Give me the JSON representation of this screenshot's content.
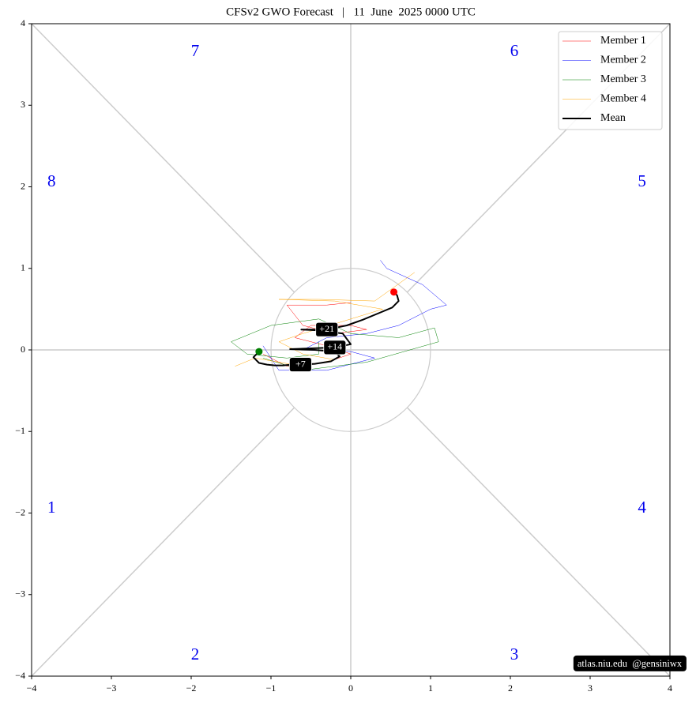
{
  "chart_data": {
    "type": "phase-line",
    "title": "CFSv2 GWO Forecast   |   11  June  2025 0000 UTC",
    "xlim": [
      -4,
      4
    ],
    "ylim": [
      -4,
      4
    ],
    "xticks": [
      {
        "value": -4,
        "label": "−4"
      },
      {
        "value": -3,
        "label": "−3"
      },
      {
        "value": -2,
        "label": "−2"
      },
      {
        "value": -1,
        "label": "−1"
      },
      0,
      1,
      2,
      3,
      4
    ],
    "yticks": [
      {
        "value": -4,
        "label": "−4"
      },
      {
        "value": -3,
        "label": "−3"
      },
      {
        "value": -2,
        "label": "−2"
      },
      {
        "value": -1,
        "label": "−1"
      },
      0,
      1,
      2,
      3,
      4
    ],
    "phase_labels": [
      "1",
      "2",
      "3",
      "4",
      "5",
      "6",
      "7",
      "8"
    ],
    "legend_position": "upper right",
    "start_color": "green",
    "end_color": "red",
    "series": [
      {
        "name": "Member 1",
        "color": "#ff0000",
        "width": 0.5,
        "x": [
          -1.1,
          -0.8,
          -0.3,
          0,
          -0.3,
          -0.7,
          -0.5,
          0,
          0.2,
          -0.2,
          -0.6,
          -0.8,
          -0.3,
          0
        ],
        "values": [
          -0.05,
          -0.2,
          -0.15,
          -0.05,
          0.05,
          0.15,
          0.3,
          0.3,
          0.25,
          0.2,
          0.3,
          0.55,
          0.55,
          0.58
        ]
      },
      {
        "name": "Member 2",
        "color": "#0000ff",
        "width": 0.5,
        "x": [
          -1.1,
          -0.9,
          -0.3,
          0.3,
          0,
          -0.6,
          -0.3,
          0.2,
          0.6,
          1.0,
          1.2,
          0.9,
          0.45,
          0.37
        ],
        "values": [
          0.05,
          -0.25,
          -0.25,
          -0.1,
          -0.02,
          0,
          0.15,
          0.2,
          0.3,
          0.5,
          0.55,
          0.8,
          1.0,
          1.1
        ]
      },
      {
        "name": "Member 3",
        "color": "#008000",
        "width": 0.5,
        "x": [
          -1.1,
          -0.6,
          0.2,
          1.1,
          1.05,
          0.6,
          0,
          -0.4,
          -1.0,
          -1.5,
          -1.3,
          -0.8,
          -0.4,
          -0.4
        ],
        "values": [
          -0.1,
          -0.25,
          -0.15,
          0.1,
          0.27,
          0.15,
          0.2,
          0.38,
          0.3,
          0.1,
          -0.05,
          -0.1,
          -0.05,
          0.1
        ]
      },
      {
        "name": "Member 4",
        "color": "#ffa500",
        "width": 0.5,
        "x": [
          -1.45,
          -1.2,
          -0.6,
          -0.2,
          -0.6,
          -0.9,
          -0.6,
          -0.1,
          0.4,
          -0.2,
          -0.9,
          -0.4,
          0.3,
          0.8
        ],
        "values": [
          -0.2,
          -0.1,
          -0.2,
          -0.12,
          -0.05,
          0.1,
          0.2,
          0.35,
          0.5,
          0.6,
          0.62,
          0.62,
          0.6,
          0.95
        ]
      },
      {
        "name": "Mean",
        "color": "#000000",
        "width": 2,
        "x": [
          -1.15,
          -1.22,
          -1.15,
          -1.05,
          -0.95,
          -0.85,
          -0.74,
          -0.63,
          -0.45,
          -0.25,
          -0.14,
          -0.2,
          -0.45,
          -0.76,
          -0.2,
          0,
          -0.1,
          -0.4,
          -0.62,
          -0.55,
          -0.4,
          -0.3,
          -0.05,
          0.15,
          0.35,
          0.52,
          0.6,
          0.58,
          0.54
        ],
        "values": [
          -0.02,
          -0.09,
          -0.16,
          -0.18,
          -0.19,
          -0.19,
          -0.18,
          -0.18,
          -0.17,
          -0.14,
          -0.08,
          -0.02,
          0,
          0.01,
          0.03,
          0.07,
          0.2,
          0.24,
          0.25,
          0.25,
          0.25,
          0.25,
          0.3,
          0.37,
          0.45,
          0.52,
          0.6,
          0.67,
          0.71
        ]
      }
    ],
    "annotations": [
      "+7",
      "+14",
      "+21"
    ],
    "credit": "atlas.niu.edu  @gensiniwx"
  }
}
